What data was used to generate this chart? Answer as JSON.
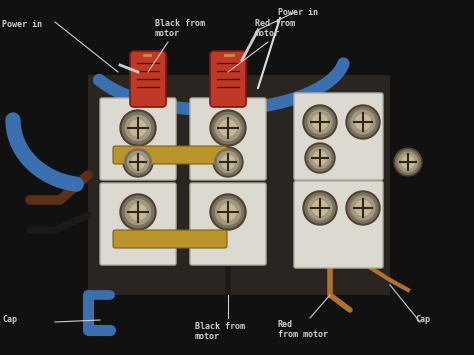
{
  "bg_color": "#1c1c1c",
  "dark_surround": "#0d0d0d",
  "white_block_color": "#dcdad0",
  "white_block_edge": "#b0aea0",
  "screw_outer": "#7a7060",
  "screw_mid": "#a09880",
  "screw_inner": "#c8b890",
  "screw_slot": "#302820",
  "connector_red": "#c03828",
  "connector_edge": "#801808",
  "connector_ridge": "#601008",
  "gold_bridge": "#b8942a",
  "gold_bridge_edge": "#806010",
  "blue_wire": "#3a70b0",
  "blue_wire_dark": "#284870",
  "brown_wire": "#5a3010",
  "black_wire": "#1a1a1a",
  "copper_wire": "#b07030",
  "ann_color": "#cccccc",
  "ann_fontsize": 6,
  "figsize": [
    4.74,
    3.55
  ],
  "dpi": 100,
  "labels": {
    "power_in_left": "Power in",
    "power_in_right": "Power in",
    "black_from_motor_top": "Black from\nmotor",
    "red_from_motor_top": "Red from\nmotor",
    "cap_left": "Cap",
    "cap_right": "Cap",
    "black_from_motor_bot": "Black from\nmotor",
    "red_from_motor_bot": "Red\nfrom motor"
  }
}
